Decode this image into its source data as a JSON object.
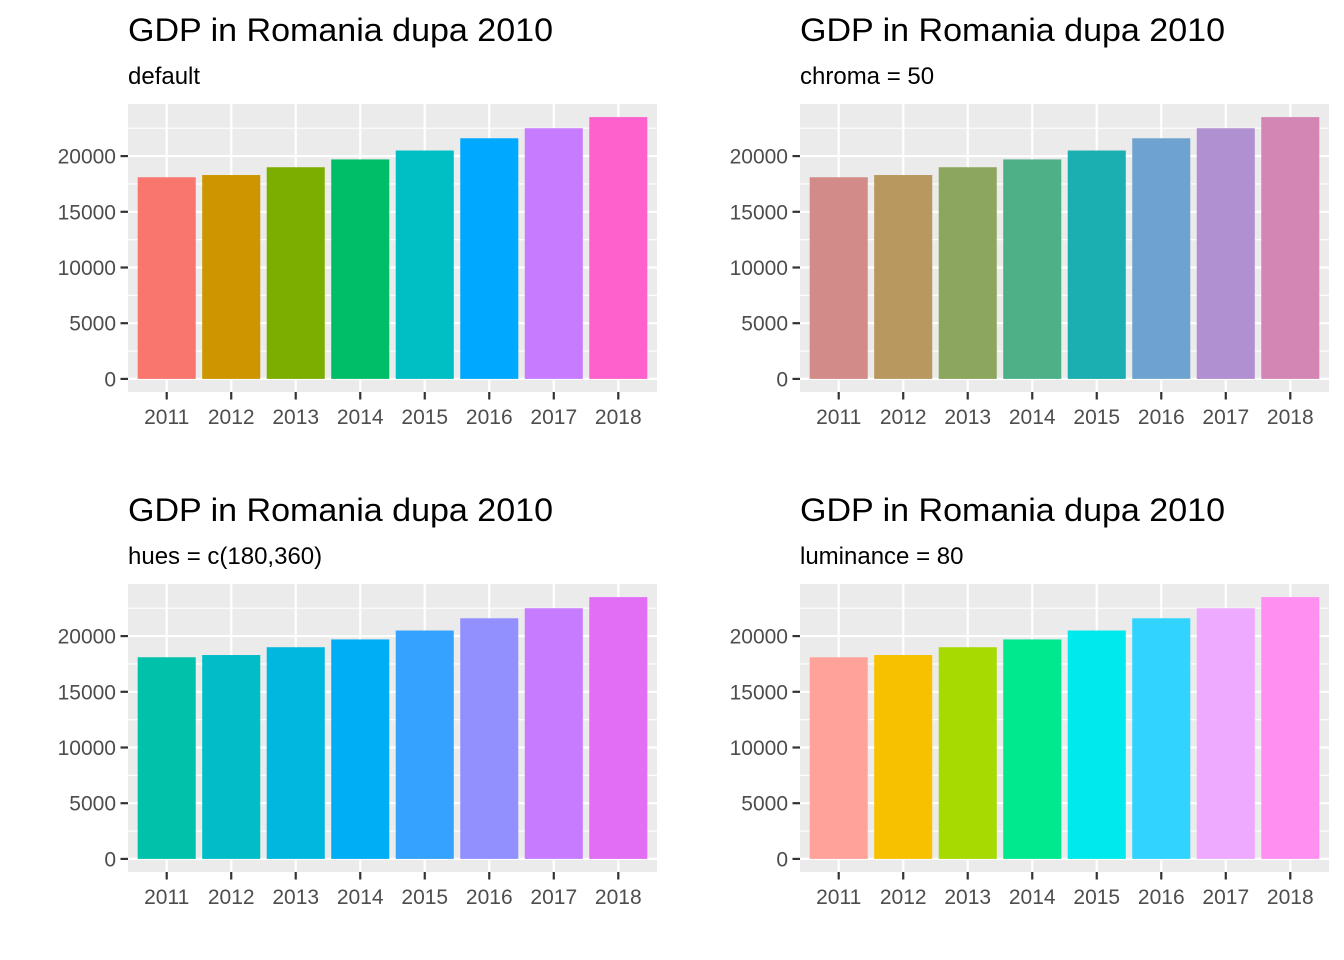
{
  "chart_data": [
    {
      "type": "bar",
      "title": "GDP in Romania dupa 2010",
      "subtitle": "default",
      "xlabel": "",
      "ylabel": "",
      "categories": [
        "2011",
        "2012",
        "2013",
        "2014",
        "2015",
        "2016",
        "2017",
        "2018"
      ],
      "values": [
        18100,
        18300,
        19000,
        19700,
        20500,
        21600,
        22500,
        23500
      ],
      "colors": [
        "#F8766D",
        "#CD9600",
        "#7CAE00",
        "#00BE67",
        "#00BFC4",
        "#00A9FF",
        "#C77CFF",
        "#FF61CC"
      ],
      "yticks": [
        0,
        5000,
        10000,
        15000,
        20000
      ],
      "ytick_labels": [
        "0",
        "5000",
        "10000",
        "15000",
        "20000"
      ],
      "ylim": [
        0,
        23500
      ],
      "grid": true,
      "legend": "none"
    },
    {
      "type": "bar",
      "title": "GDP in Romania dupa 2010",
      "subtitle": "chroma = 50",
      "xlabel": "",
      "ylabel": "",
      "categories": [
        "2011",
        "2012",
        "2013",
        "2014",
        "2015",
        "2016",
        "2017",
        "2018"
      ],
      "values": [
        18100,
        18300,
        19000,
        19700,
        20500,
        21600,
        22500,
        23500
      ],
      "colors": [
        "#D28B88",
        "#B8985E",
        "#8CA65E",
        "#4DB087",
        "#1CAFB1",
        "#6FA3CF",
        "#B090D0",
        "#D386B3"
      ],
      "yticks": [
        0,
        5000,
        10000,
        15000,
        20000
      ],
      "ytick_labels": [
        "0",
        "5000",
        "10000",
        "15000",
        "20000"
      ],
      "ylim": [
        0,
        23500
      ],
      "grid": true,
      "legend": "none"
    },
    {
      "type": "bar",
      "title": "GDP in Romania dupa 2010",
      "subtitle": "hues = c(180,360)",
      "xlabel": "",
      "ylabel": "",
      "categories": [
        "2011",
        "2012",
        "2013",
        "2014",
        "2015",
        "2016",
        "2017",
        "2018"
      ],
      "values": [
        18100,
        18300,
        19000,
        19700,
        20500,
        21600,
        22500,
        23500
      ],
      "colors": [
        "#00C1AA",
        "#00BDC7",
        "#00B7E0",
        "#00AEF6",
        "#35A2FF",
        "#9290FF",
        "#C77CFF",
        "#E36EF6"
      ],
      "yticks": [
        0,
        5000,
        10000,
        15000,
        20000
      ],
      "ytick_labels": [
        "0",
        "5000",
        "10000",
        "15000",
        "20000"
      ],
      "ylim": [
        0,
        23500
      ],
      "grid": true,
      "legend": "none"
    },
    {
      "type": "bar",
      "title": "GDP in Romania dupa 2010",
      "subtitle": "luminance = 80",
      "xlabel": "",
      "ylabel": "",
      "categories": [
        "2011",
        "2012",
        "2013",
        "2014",
        "2015",
        "2016",
        "2017",
        "2018"
      ],
      "values": [
        18100,
        18300,
        19000,
        19700,
        20500,
        21600,
        22500,
        23500
      ],
      "colors": [
        "#FFA39A",
        "#F7C100",
        "#A6DA00",
        "#00E98F",
        "#00E9EC",
        "#31D3FF",
        "#EDAAFF",
        "#FF90F1"
      ],
      "yticks": [
        0,
        5000,
        10000,
        15000,
        20000
      ],
      "ytick_labels": [
        "0",
        "5000",
        "10000",
        "15000",
        "20000"
      ],
      "ylim": [
        0,
        23500
      ],
      "grid": true,
      "legend": "none"
    }
  ]
}
